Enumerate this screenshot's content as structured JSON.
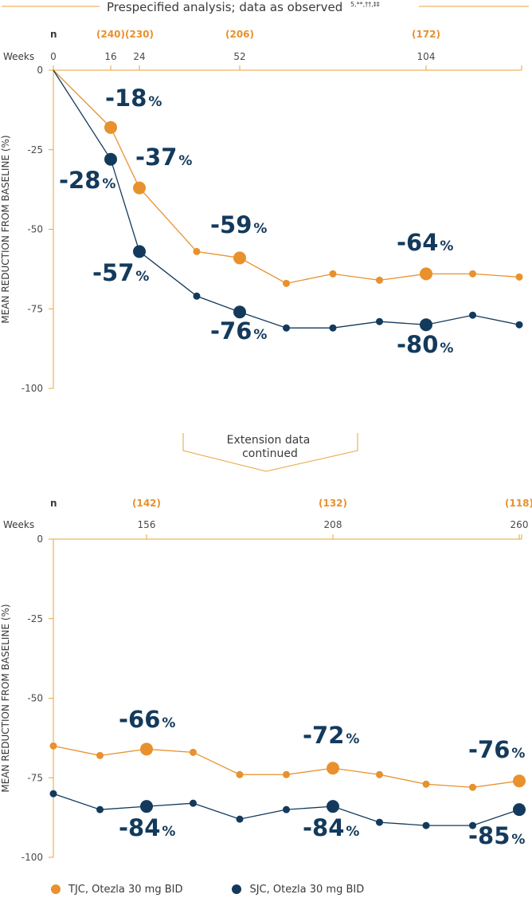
{
  "header": {
    "title": "Prespecified analysis; data as observed",
    "superscript": "5,**,††,‡‡"
  },
  "extension": {
    "line1": "Extension data",
    "line2": "continued"
  },
  "legend": {
    "tjc": "TJC, Otezla 30 mg BID",
    "sjc": "SJC, Otezla 30 mg BID"
  },
  "colors": {
    "tjc": "#E8912D",
    "sjc": "#133A5C",
    "axis": "#E8A33A",
    "n_text": "#E8912D",
    "tick_text": "#4a4a4a",
    "label_text": "#133A5C"
  },
  "chart_data": [
    {
      "type": "line",
      "title": "",
      "xlabel": "Weeks",
      "ylabel": "MEAN REDUCTION FROM BASELINE (%)",
      "ylim": [
        -100,
        0
      ],
      "yticks": [
        "0",
        "-25",
        "-50",
        "-75",
        "-100"
      ],
      "x_ticks": [
        "0",
        "16",
        "24",
        "52",
        "104"
      ],
      "n_label": "n",
      "n_values": [
        {
          "week": 16,
          "text": "(240)"
        },
        {
          "week": 24,
          "text": "(230)"
        },
        {
          "week": 52,
          "text": "(206)"
        },
        {
          "week": 104,
          "text": "(172)"
        }
      ],
      "series": [
        {
          "name": "TJC, Otezla 30 mg BID",
          "x": [
            0,
            16,
            24,
            40,
            52,
            65,
            78,
            91,
            104,
            117,
            130
          ],
          "values": [
            0,
            -18,
            -37,
            -57,
            -59,
            -67,
            -64,
            -66,
            -64,
            -64,
            -65
          ],
          "highlight": [
            {
              "x": 16,
              "label": "-18",
              "unit": "%"
            },
            {
              "x": 24,
              "label": "-37",
              "unit": "%"
            },
            {
              "x": 52,
              "label": "-59",
              "unit": "%"
            },
            {
              "x": 104,
              "label": "-64",
              "unit": "%"
            }
          ]
        },
        {
          "name": "SJC, Otezla 30 mg BID",
          "x": [
            0,
            16,
            24,
            40,
            52,
            65,
            78,
            91,
            104,
            117,
            130
          ],
          "values": [
            0,
            -28,
            -57,
            -71,
            -76,
            -81,
            -81,
            -79,
            -80,
            -77,
            -80
          ],
          "highlight": [
            {
              "x": 16,
              "label": "-28",
              "unit": "%"
            },
            {
              "x": 24,
              "label": "-57",
              "unit": "%"
            },
            {
              "x": 52,
              "label": "-76",
              "unit": "%"
            },
            {
              "x": 104,
              "label": "-80",
              "unit": "%"
            }
          ]
        }
      ]
    },
    {
      "type": "line",
      "title": "",
      "xlabel": "Weeks",
      "ylabel": "MEAN REDUCTION FROM BASELINE (%)",
      "ylim": [
        -100,
        0
      ],
      "yticks": [
        "0",
        "-25",
        "-50",
        "-75",
        "-100"
      ],
      "x_ticks": [
        "156",
        "208",
        "260"
      ],
      "n_label": "n",
      "n_values": [
        {
          "week": 156,
          "text": "(142)"
        },
        {
          "week": 208,
          "text": "(132)"
        },
        {
          "week": 260,
          "text": "(118)"
        }
      ],
      "series": [
        {
          "name": "TJC, Otezla 30 mg BID",
          "x": [
            130,
            143,
            156,
            169,
            182,
            195,
            208,
            221,
            234,
            247,
            260
          ],
          "values": [
            -65,
            -68,
            -66,
            -67,
            -74,
            -74,
            -72,
            -74,
            -77,
            -78,
            -76
          ],
          "highlight": [
            {
              "x": 156,
              "label": "-66",
              "unit": "%"
            },
            {
              "x": 208,
              "label": "-72",
              "unit": "%"
            },
            {
              "x": 260,
              "label": "-76",
              "unit": "%"
            }
          ]
        },
        {
          "name": "SJC, Otezla 30 mg BID",
          "x": [
            130,
            143,
            156,
            169,
            182,
            195,
            208,
            221,
            234,
            247,
            260
          ],
          "values": [
            -80,
            -85,
            -84,
            -83,
            -88,
            -85,
            -84,
            -89,
            -90,
            -90,
            -85
          ],
          "highlight": [
            {
              "x": 156,
              "label": "-84",
              "unit": "%"
            },
            {
              "x": 208,
              "label": "-84",
              "unit": "%"
            },
            {
              "x": 260,
              "label": "-85",
              "unit": "%"
            }
          ]
        }
      ]
    }
  ]
}
